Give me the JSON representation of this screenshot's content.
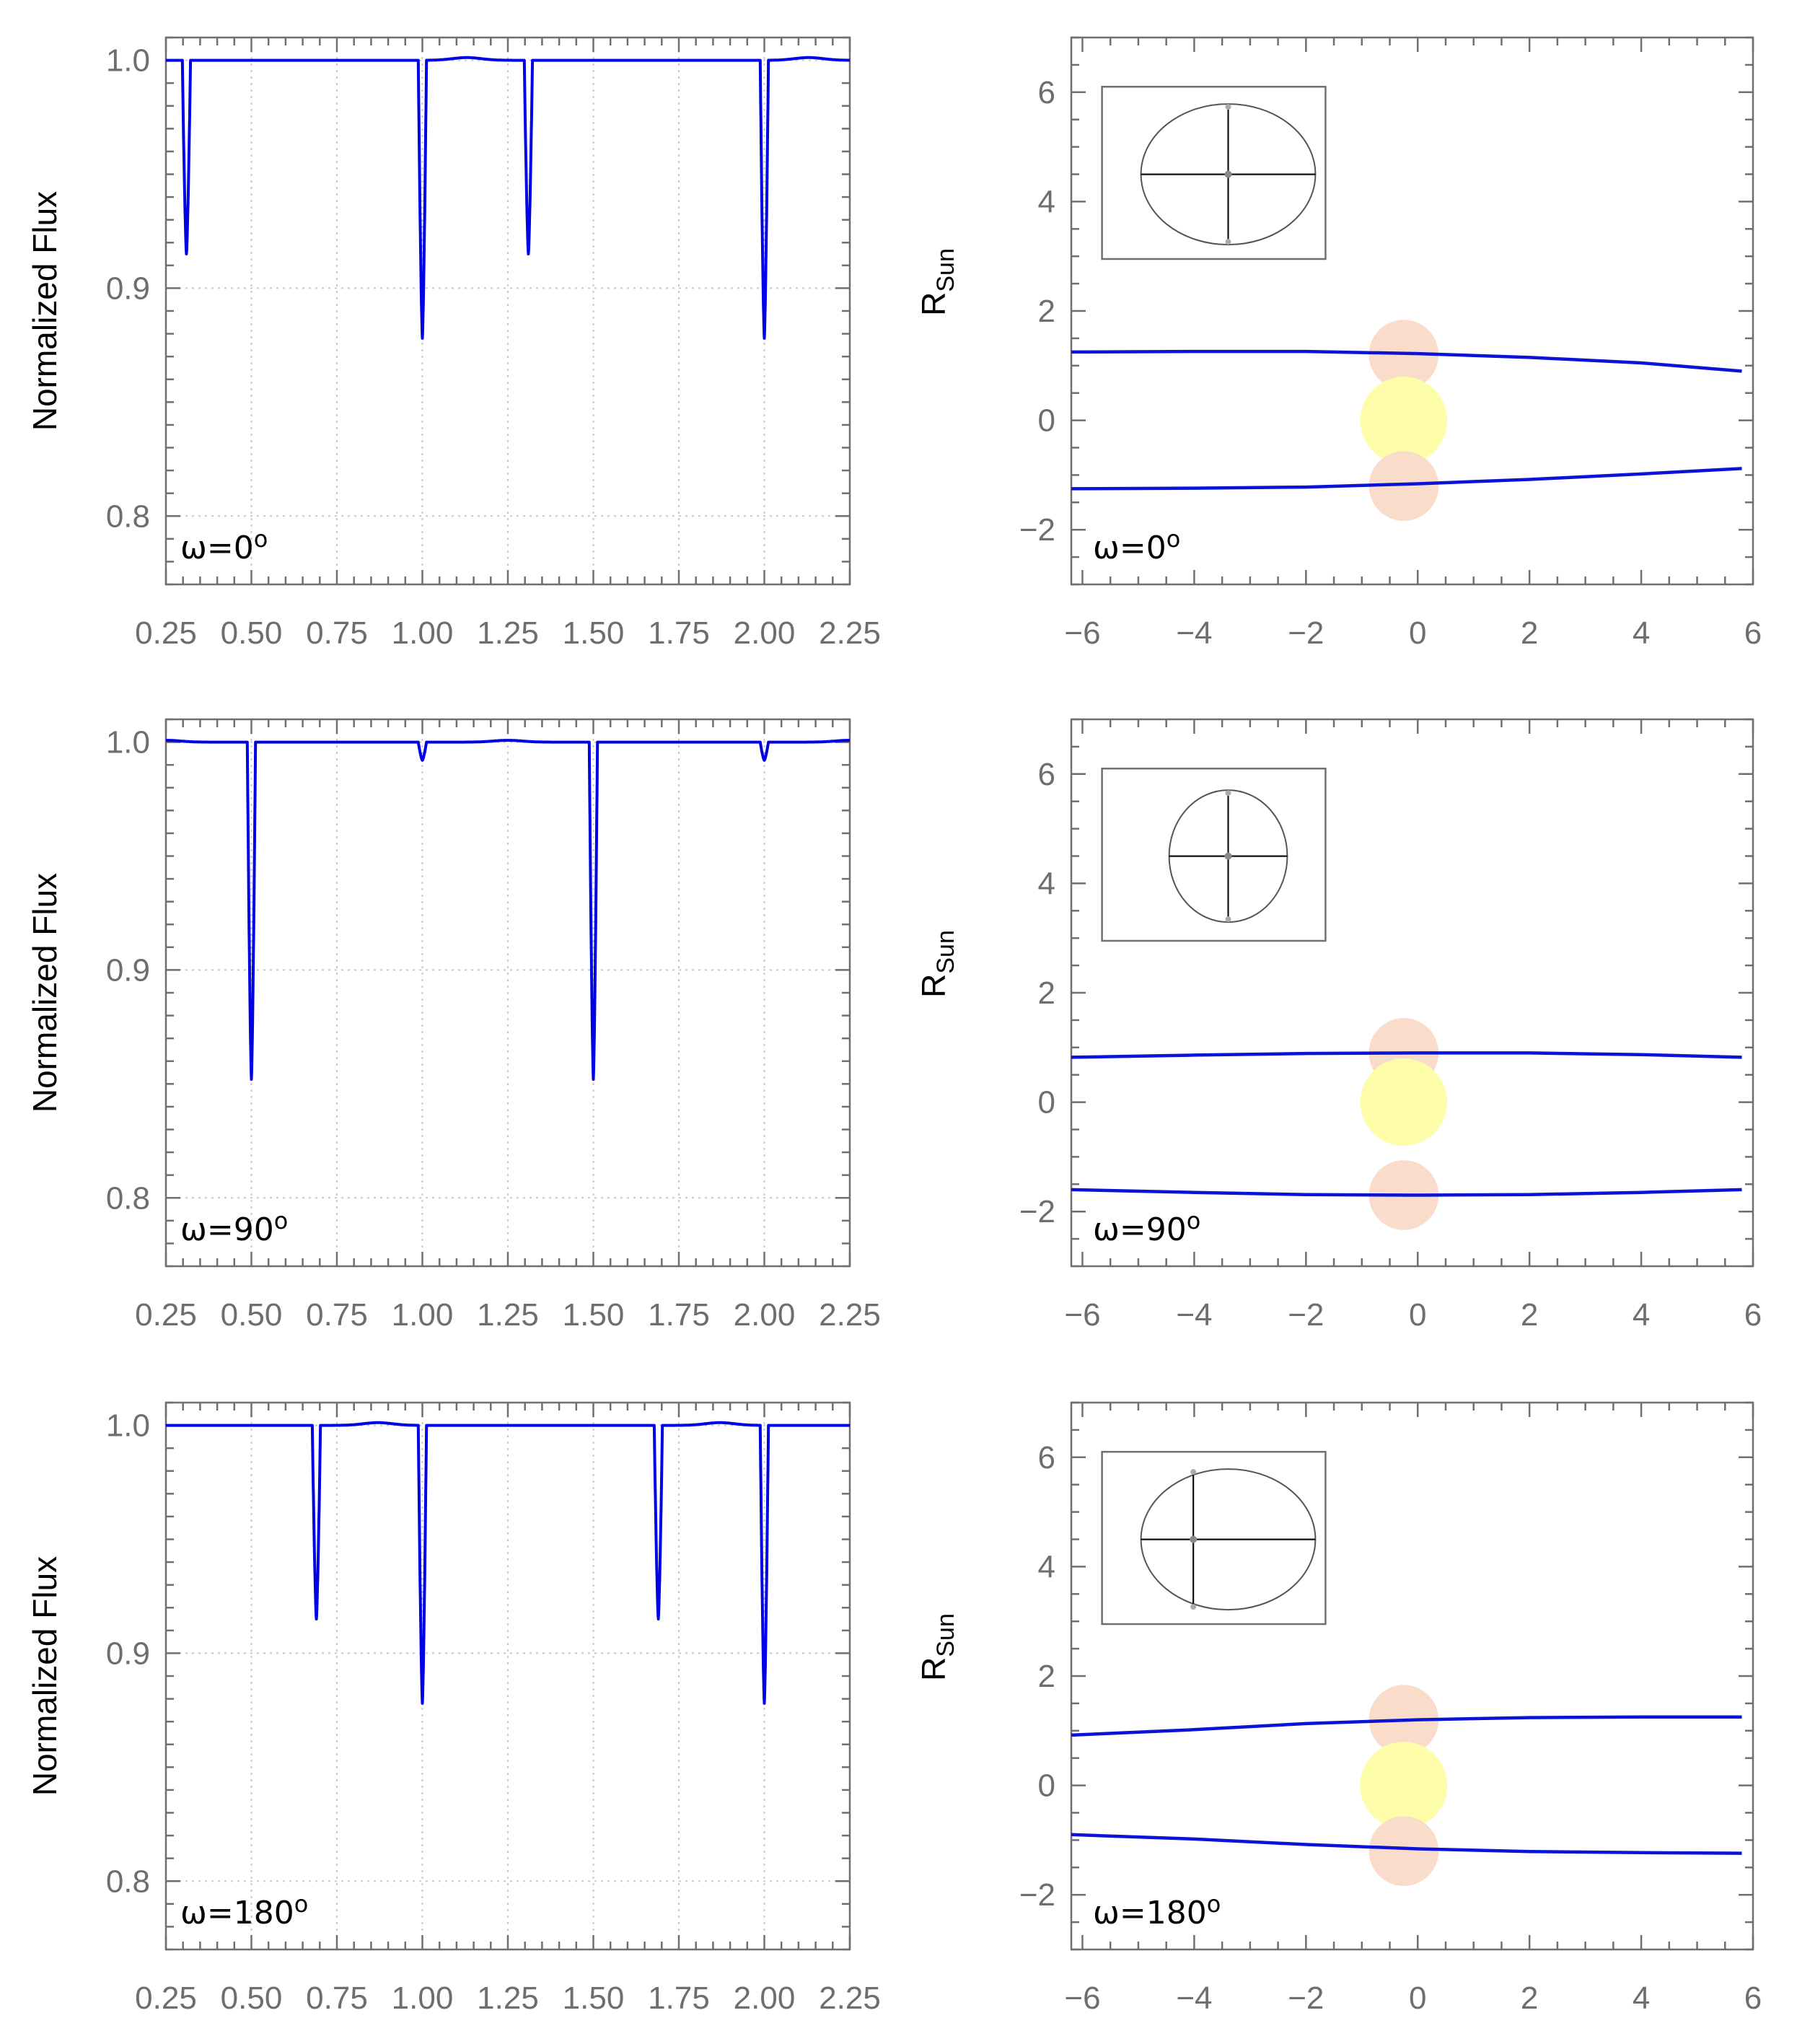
{
  "colors": {
    "curve": "#0000e6",
    "orbit": "#0a14d6",
    "companion_star": "#fadcca",
    "primary_star": "#fefeaa",
    "axis": "#6f6f6f",
    "tick_label": "#6e6e6e"
  },
  "chart_data": [
    {
      "type": "line",
      "panel": "light-curve",
      "annotation_prefix": "ω=",
      "omega": "0",
      "annotation_sup": "o",
      "ylabel": "Normalized Flux",
      "xlim": [
        0.25,
        2.25
      ],
      "ylim": [
        0.77,
        1.01
      ],
      "x_ticks": [
        "0.25",
        "0.50",
        "0.75",
        "1.00",
        "1.25",
        "1.50",
        "1.75",
        "2.00",
        "2.25"
      ],
      "y_ticks": [
        "0.8",
        "0.9",
        "1.0"
      ],
      "baseline": 1.0,
      "eclipses": [
        {
          "phase": 0.31,
          "depth": 0.915
        },
        {
          "phase": 1.0,
          "depth": 0.878
        },
        {
          "phase": 1.31,
          "depth": 0.915
        },
        {
          "phase": 2.0,
          "depth": 0.878
        }
      ],
      "bumps": [
        {
          "phase": 1.13,
          "height": 0.0012
        },
        {
          "phase": 2.13,
          "height": 0.0012
        }
      ]
    },
    {
      "type": "line",
      "panel": "orbit",
      "annotation_prefix": "ω=",
      "omega": "0",
      "annotation_sup": "o",
      "ylabel_main": "R",
      "ylabel_sub": "Sun",
      "xlim": [
        -6.2,
        6
      ],
      "ylim": [
        -3,
        7
      ],
      "x_ticks": [
        "−6",
        "−4",
        "−2",
        "0",
        "2",
        "4",
        "6"
      ],
      "y_ticks": [
        "−2",
        "0",
        "2",
        "4",
        "6"
      ],
      "upper_track": {
        "x": [
          -6.2,
          -4,
          -2,
          0,
          2,
          4,
          5.8
        ],
        "y": [
          1.25,
          1.26,
          1.26,
          1.22,
          1.15,
          1.05,
          0.9
        ]
      },
      "lower_track": {
        "x": [
          -6.2,
          -4,
          -2,
          0,
          2,
          4,
          5.8
        ],
        "y": [
          -1.25,
          -1.24,
          -1.22,
          -1.16,
          -1.08,
          -0.98,
          -0.88
        ]
      },
      "stars": [
        {
          "x": -0.25,
          "y": 1.2,
          "r": 0.8,
          "kind": "companion"
        },
        {
          "x": -0.25,
          "y": 0.0,
          "r": 1.0,
          "kind": "primary"
        },
        {
          "x": -0.25,
          "y": -1.2,
          "r": 0.8,
          "kind": "companion"
        }
      ],
      "inset": {
        "ellipse_a": 1.55,
        "ellipse_b": 1.3,
        "focus_offset": 0.0,
        "cross_x": 0.0
      }
    },
    {
      "type": "line",
      "panel": "light-curve",
      "annotation_prefix": "ω=",
      "omega": "90",
      "annotation_sup": "o",
      "ylabel": "Normalized Flux",
      "xlim": [
        0.25,
        2.25
      ],
      "ylim": [
        0.77,
        1.01
      ],
      "x_ticks": [
        "0.25",
        "0.50",
        "0.75",
        "1.00",
        "1.25",
        "1.50",
        "1.75",
        "2.00",
        "2.25"
      ],
      "y_ticks": [
        "0.8",
        "0.9",
        "1.0"
      ],
      "baseline": 1.0,
      "eclipses": [
        {
          "phase": 0.5,
          "depth": 0.852
        },
        {
          "phase": 1.0,
          "depth": 0.992
        },
        {
          "phase": 1.5,
          "depth": 0.852
        },
        {
          "phase": 2.0,
          "depth": 0.992
        }
      ],
      "bumps": [
        {
          "phase": 0.25,
          "height": 0.0008
        },
        {
          "phase": 1.25,
          "height": 0.0008
        },
        {
          "phase": 2.25,
          "height": 0.0008
        }
      ]
    },
    {
      "type": "line",
      "panel": "orbit",
      "annotation_prefix": "ω=",
      "omega": "90",
      "annotation_sup": "o",
      "ylabel_main": "R",
      "ylabel_sub": "Sun",
      "xlim": [
        -6.2,
        6
      ],
      "ylim": [
        -3,
        7
      ],
      "x_ticks": [
        "−6",
        "−4",
        "−2",
        "0",
        "2",
        "4",
        "6"
      ],
      "y_ticks": [
        "−2",
        "0",
        "2",
        "4",
        "6"
      ],
      "upper_track": {
        "x": [
          -6.2,
          -4,
          -2,
          0,
          2,
          4,
          5.8
        ],
        "y": [
          0.82,
          0.86,
          0.89,
          0.9,
          0.9,
          0.87,
          0.82
        ]
      },
      "lower_track": {
        "x": [
          -6.2,
          -4,
          -2,
          0,
          2,
          4,
          5.8
        ],
        "y": [
          -1.6,
          -1.65,
          -1.69,
          -1.7,
          -1.69,
          -1.65,
          -1.6
        ]
      },
      "stars": [
        {
          "x": -0.25,
          "y": 0.9,
          "r": 0.8,
          "kind": "companion"
        },
        {
          "x": -0.25,
          "y": 0.0,
          "r": 1.0,
          "kind": "primary"
        },
        {
          "x": -0.25,
          "y": -1.7,
          "r": 0.8,
          "kind": "companion"
        }
      ],
      "inset": {
        "ellipse_a": 1.05,
        "ellipse_b": 1.22,
        "focus_offset": 0.0,
        "cross_x": 0.0
      }
    },
    {
      "type": "line",
      "panel": "light-curve",
      "annotation_prefix": "ω=",
      "omega": "180",
      "annotation_sup": "o",
      "ylabel": "Normalized Flux",
      "xlim": [
        0.25,
        2.25
      ],
      "ylim": [
        0.77,
        1.01
      ],
      "x_ticks": [
        "0.25",
        "0.50",
        "0.75",
        "1.00",
        "1.25",
        "1.50",
        "1.75",
        "2.00",
        "2.25"
      ],
      "y_ticks": [
        "0.8",
        "0.9",
        "1.0"
      ],
      "baseline": 1.0,
      "eclipses": [
        {
          "phase": 0.69,
          "depth": 0.915
        },
        {
          "phase": 1.0,
          "depth": 0.878
        },
        {
          "phase": 1.69,
          "depth": 0.915
        },
        {
          "phase": 2.0,
          "depth": 0.878
        }
      ],
      "bumps": [
        {
          "phase": 0.87,
          "height": 0.0012
        },
        {
          "phase": 1.87,
          "height": 0.0012
        }
      ]
    },
    {
      "type": "line",
      "panel": "orbit",
      "annotation_prefix": "ω=",
      "omega": "180",
      "annotation_sup": "o",
      "ylabel_main": "R",
      "ylabel_sub": "Sun",
      "xlim": [
        -6.2,
        6
      ],
      "ylim": [
        -3,
        7
      ],
      "x_ticks": [
        "−6",
        "−4",
        "−2",
        "0",
        "2",
        "4",
        "6"
      ],
      "y_ticks": [
        "−2",
        "0",
        "2",
        "4",
        "6"
      ],
      "upper_track": {
        "x": [
          -6.2,
          -4,
          -2,
          0,
          2,
          4,
          5.8
        ],
        "y": [
          0.92,
          1.02,
          1.13,
          1.2,
          1.24,
          1.25,
          1.25
        ]
      },
      "lower_track": {
        "x": [
          -6.2,
          -4,
          -2,
          0,
          2,
          4,
          5.8
        ],
        "y": [
          -0.9,
          -0.98,
          -1.08,
          -1.16,
          -1.21,
          -1.23,
          -1.24
        ]
      },
      "stars": [
        {
          "x": -0.25,
          "y": 1.2,
          "r": 0.8,
          "kind": "companion"
        },
        {
          "x": -0.25,
          "y": 0.0,
          "r": 1.0,
          "kind": "primary"
        },
        {
          "x": -0.25,
          "y": -1.2,
          "r": 0.8,
          "kind": "companion"
        }
      ],
      "inset": {
        "ellipse_a": 1.55,
        "ellipse_b": 1.3,
        "focus_offset": 0.0,
        "cross_x": -0.62
      }
    }
  ]
}
